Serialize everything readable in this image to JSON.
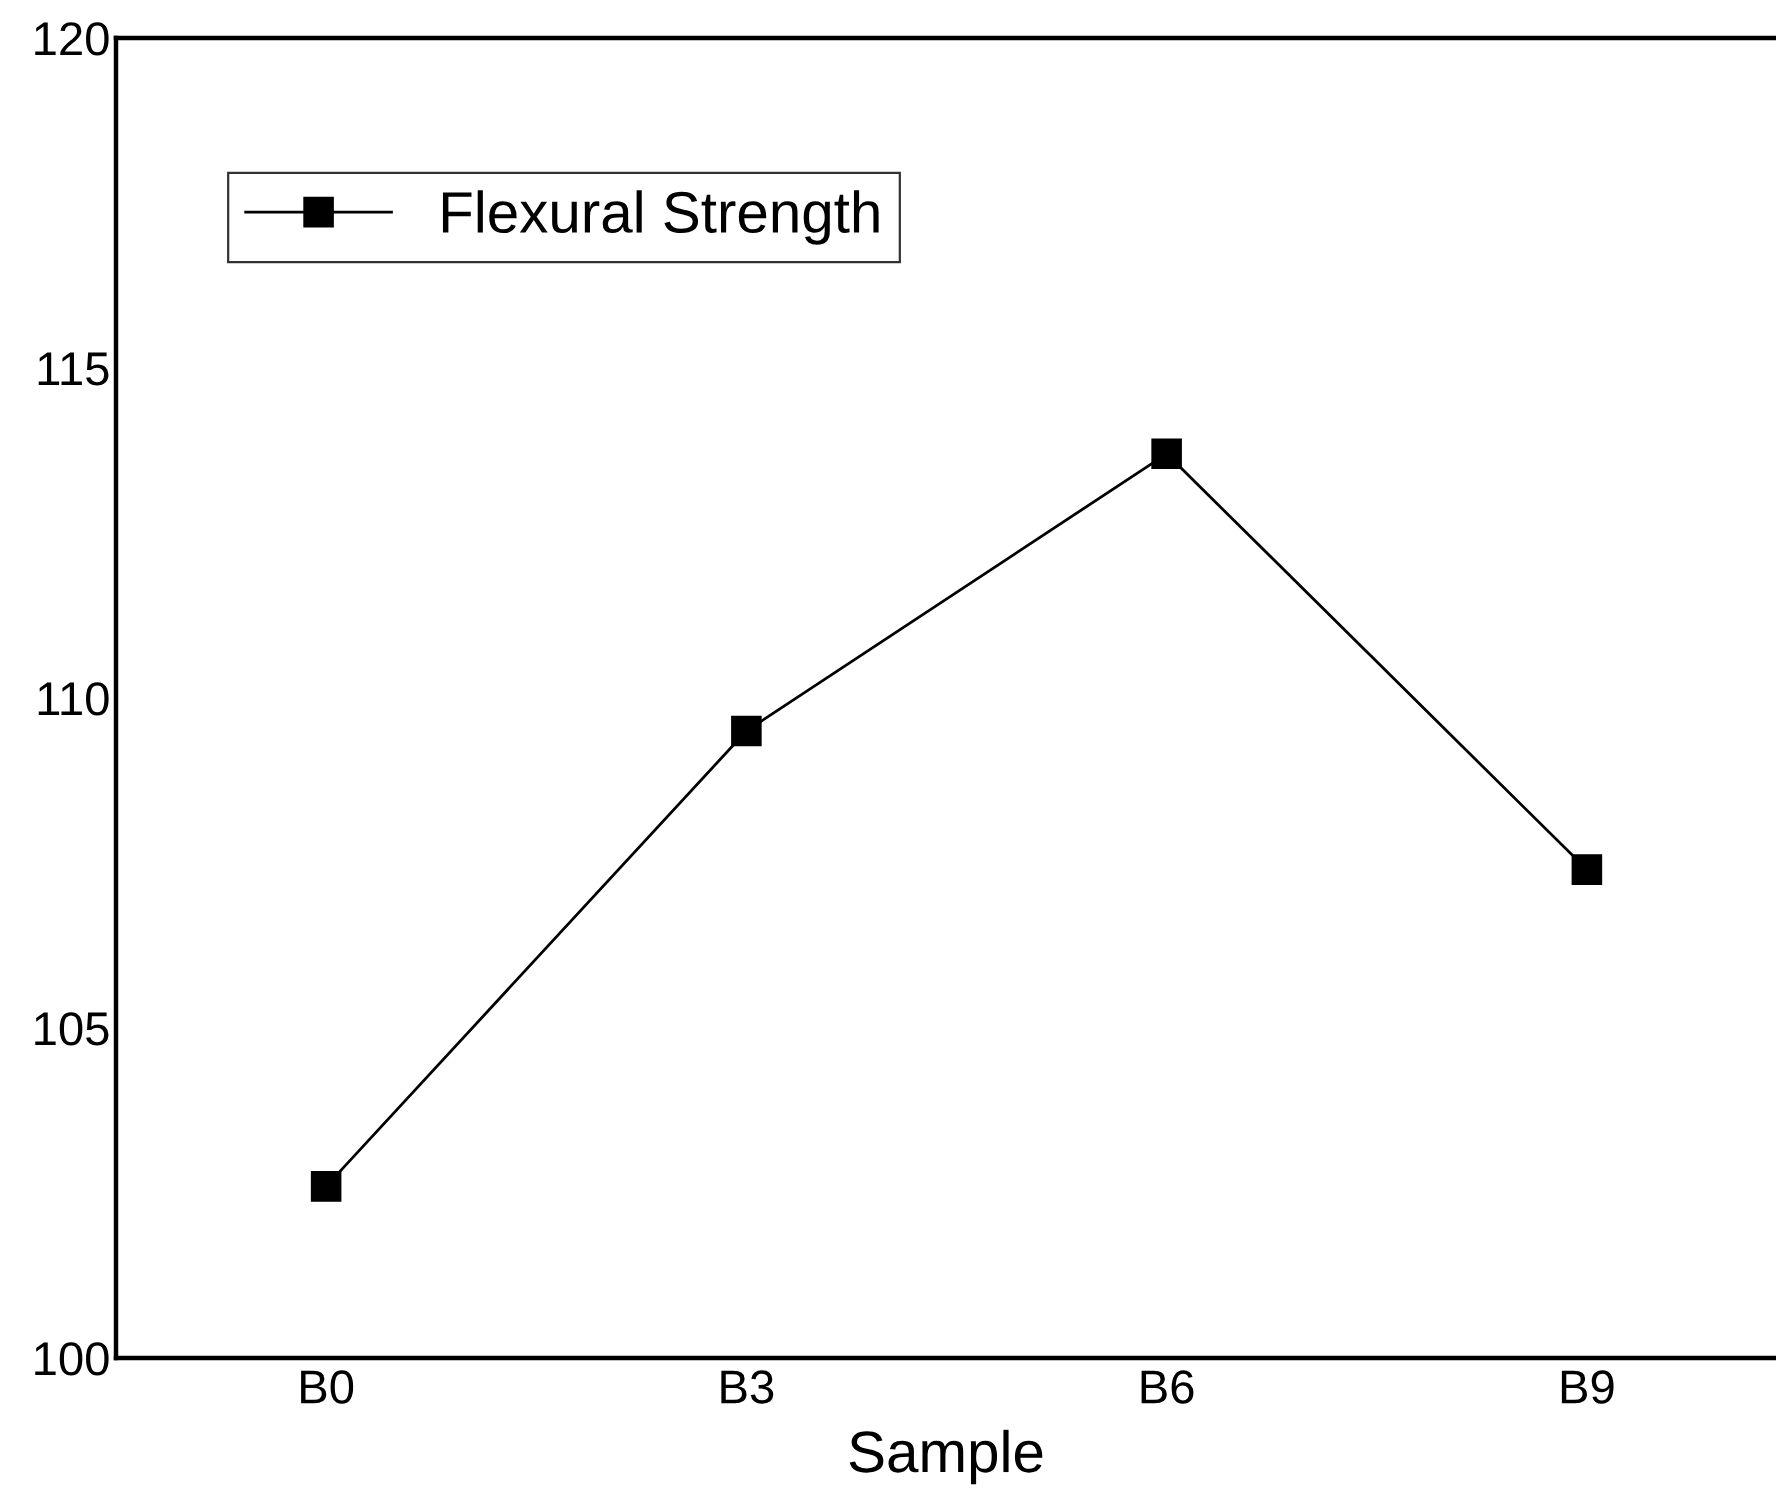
{
  "chart_data": {
    "type": "line",
    "xlabel": "Sample",
    "categories": [
      "B0",
      "B3",
      "B6",
      "B9"
    ],
    "series": [
      {
        "name": "Flexural Strength",
        "color": "#000000",
        "values": [
          102.6,
          109.5,
          113.7,
          107.4
        ]
      }
    ],
    "ylim": [
      100,
      120
    ],
    "yticks": [
      100,
      105,
      110,
      115,
      120
    ],
    "grid": false,
    "legend": "top left",
    "marker": "square",
    "line_style": "solid"
  }
}
